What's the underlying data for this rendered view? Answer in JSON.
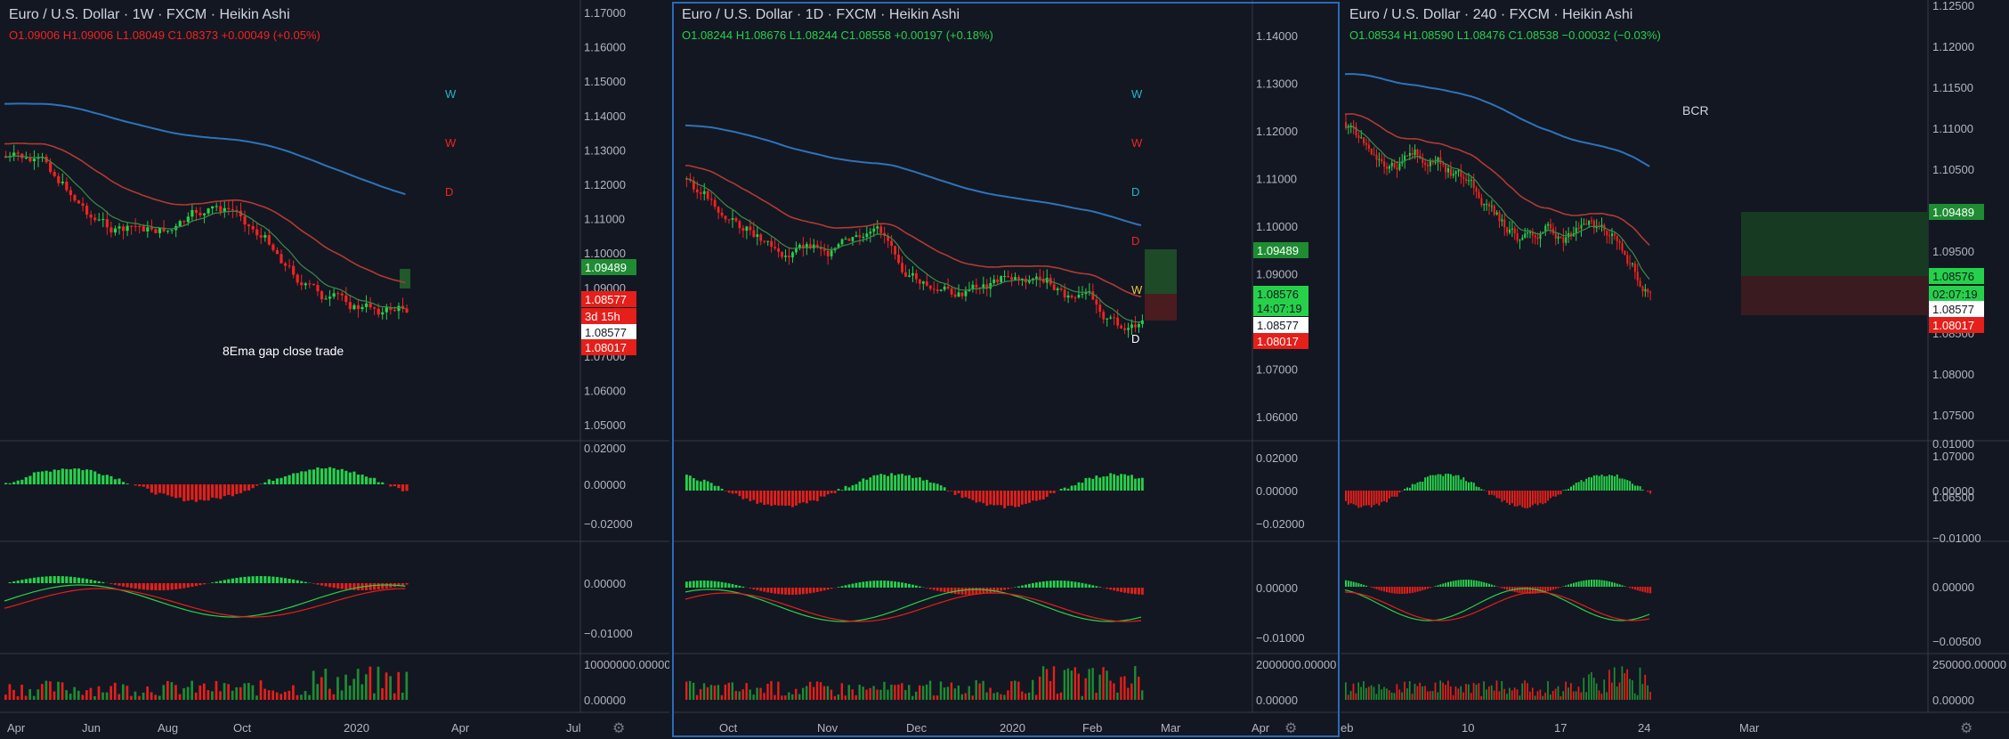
{
  "colors": {
    "bg": "#131722",
    "grid": "#2a2e39",
    "text": "#b2b5be",
    "up": "#26d14a",
    "down": "#f2231f",
    "ema_long": "#2f73b8",
    "ema_mid": "#b23a33",
    "ema_fast": "#3c8a4a",
    "selected": "#2a6ab8"
  },
  "panes": [
    {
      "title": "Euro / U.S. Dollar · 1W · FXCM · Heikin Ashi",
      "ohlc": {
        "text": "O1.09006 H1.09006 L1.08049 C1.08373 +0.00049 (+0.05%)",
        "color": "#f2231f"
      },
      "note": "8Ema gap close trade",
      "markers": [
        {
          "t": "W",
          "c": "#1fb6c9"
        },
        {
          "t": "W",
          "c": "#f2231f"
        },
        {
          "t": "D",
          "c": "#f2231f"
        }
      ],
      "price_axis": [
        "1.17000",
        "1.16000",
        "1.15000",
        "1.14000",
        "1.13000",
        "1.12000",
        "1.11000",
        "1.10000",
        "1.09000",
        "1.08000",
        "1.07000",
        "1.06000",
        "1.05000"
      ],
      "price_labels": [
        {
          "t": "1.09489",
          "bg": "#1e8c32",
          "fg": "#ffffff"
        },
        {
          "t": "1.08577",
          "bg": "#e51f1a",
          "fg": "#ffffff"
        },
        {
          "t": "3d 15h",
          "bg": "#e51f1a",
          "fg": "#ffffff"
        },
        {
          "t": "1.08577",
          "bg": "#ffffff",
          "fg": "#131722"
        },
        {
          "t": "1.08017",
          "bg": "#e51f1a",
          "fg": "#ffffff"
        }
      ],
      "ind1_axis": [
        "0.02000",
        "0.00000",
        "−0.02000"
      ],
      "ind2_axis": [
        "0.00000",
        "−0.01000"
      ],
      "vol_axis": [
        "10000000.00000",
        "0.00000"
      ],
      "time_axis": [
        "Apr",
        "Jun",
        "Aug",
        "Oct",
        "2020",
        "Apr",
        "Jul"
      ]
    },
    {
      "title": "Euro / U.S. Dollar · 1D · FXCM · Heikin Ashi",
      "ohlc": {
        "text": "O1.08244 H1.08676 L1.08244 C1.08558 +0.00197 (+0.18%)",
        "color": "#26d14a"
      },
      "note": "",
      "markers": [
        {
          "t": "W",
          "c": "#1fb6c9"
        },
        {
          "t": "W",
          "c": "#f2231f"
        },
        {
          "t": "D",
          "c": "#1fb6c9"
        },
        {
          "t": "D",
          "c": "#f2231f"
        },
        {
          "t": "W",
          "c": "#e8c53a"
        },
        {
          "t": "D",
          "c": "#ffffff"
        }
      ],
      "price_axis": [
        "1.14000",
        "1.13000",
        "1.12000",
        "1.11000",
        "1.10000",
        "1.09000",
        "1.08000",
        "1.07000",
        "1.06000"
      ],
      "price_labels": [
        {
          "t": "1.09489",
          "bg": "#1e8c32",
          "fg": "#ffffff"
        },
        {
          "t": "1.08576",
          "bg": "#26d14a",
          "fg": "#131722"
        },
        {
          "t": "14:07:19",
          "bg": "#26d14a",
          "fg": "#131722"
        },
        {
          "t": "1.08577",
          "bg": "#ffffff",
          "fg": "#131722"
        },
        {
          "t": "1.08017",
          "bg": "#e51f1a",
          "fg": "#ffffff"
        }
      ],
      "ind1_axis": [
        "0.02000",
        "0.00000",
        "−0.02000"
      ],
      "ind2_axis": [
        "0.00000",
        "−0.01000"
      ],
      "vol_axis": [
        "2000000.00000",
        "0.00000"
      ],
      "time_axis": [
        "Oct",
        "Nov",
        "Dec",
        "2020",
        "Feb",
        "Mar",
        "Apr"
      ]
    },
    {
      "title": "Euro / U.S. Dollar · 240 · FXCM · Heikin Ashi",
      "ohlc": {
        "text": "O1.08534 H1.08590 L1.08476 C1.08538 −0.00032 (−0.03%)",
        "color": "#26d14a"
      },
      "note": "BCR",
      "markers": [],
      "price_axis": [
        "1.12500",
        "1.12000",
        "1.11500",
        "1.11000",
        "1.10500",
        "1.10000",
        "1.09500",
        "1.09000",
        "1.08500",
        "1.08000",
        "1.07500",
        "1.07000",
        "1.06500"
      ],
      "price_labels": [
        {
          "t": "1.09489",
          "bg": "#1e8c32",
          "fg": "#ffffff"
        },
        {
          "t": "1.08576",
          "bg": "#26d14a",
          "fg": "#131722"
        },
        {
          "t": "02:07:19",
          "bg": "#26d14a",
          "fg": "#131722"
        },
        {
          "t": "1.08577",
          "bg": "#ffffff",
          "fg": "#131722"
        },
        {
          "t": "1.08017",
          "bg": "#e51f1a",
          "fg": "#ffffff"
        }
      ],
      "ind1_axis": [
        "0.01000",
        "0.00000",
        "−0.01000"
      ],
      "ind2_axis": [
        "0.00000",
        "−0.00500"
      ],
      "vol_axis": [
        "250000.00000",
        "0.00000"
      ],
      "time_axis": [
        "eb",
        "10",
        "17",
        "24",
        "Mar"
      ]
    }
  ]
}
